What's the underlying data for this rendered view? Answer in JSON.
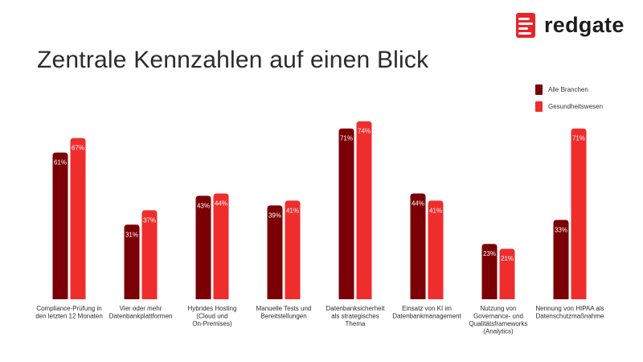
{
  "brand": {
    "name": "redgate"
  },
  "page_title": "Zentrale Kennzahlen auf einen Blick",
  "colors": {
    "series1": "#7a0005",
    "series2": "#f02d2d",
    "text": "#2b2b2b"
  },
  "chart_data": {
    "type": "bar",
    "title": "",
    "xlabel": "",
    "ylabel": "",
    "ylim": [
      0,
      100
    ],
    "grid": false,
    "legend_position": "top-right",
    "categories": [
      [
        "Compliance-Prüfung in",
        "den letzten 12 Monaten"
      ],
      [
        "Vier oder mehr",
        "Datenbankplattformen"
      ],
      [
        "Hybrides Hosting",
        "(Cloud und",
        "On-Premises)"
      ],
      [
        "Manuelle Tests und",
        "Bereitstellungen"
      ],
      [
        "Datenbanksicherheit",
        "als strategisches",
        "Thema"
      ],
      [
        "Einsatz von KI im",
        "Datenbankmanagement"
      ],
      [
        "Nutzung von",
        "Governance- und",
        "Qualitätsframeworks",
        "(Analytics)"
      ],
      [
        "Nennung von HIPAA als",
        "Datenschutzmaßnahme"
      ]
    ],
    "series": [
      {
        "name": "Alle Branchen",
        "values": [
          61,
          31,
          43,
          39,
          71,
          44,
          23,
          33
        ],
        "labels": [
          "61%",
          "31%",
          "43%",
          "39%",
          "71%",
          "44%",
          "23%",
          "33%"
        ]
      },
      {
        "name": "Gesundheitswesen",
        "values": [
          67,
          37,
          44,
          41,
          74,
          41,
          21,
          71
        ],
        "labels": [
          "67%",
          "37%",
          "44%",
          "41%",
          "74%",
          "41%",
          "21%",
          "71%"
        ]
      }
    ]
  }
}
